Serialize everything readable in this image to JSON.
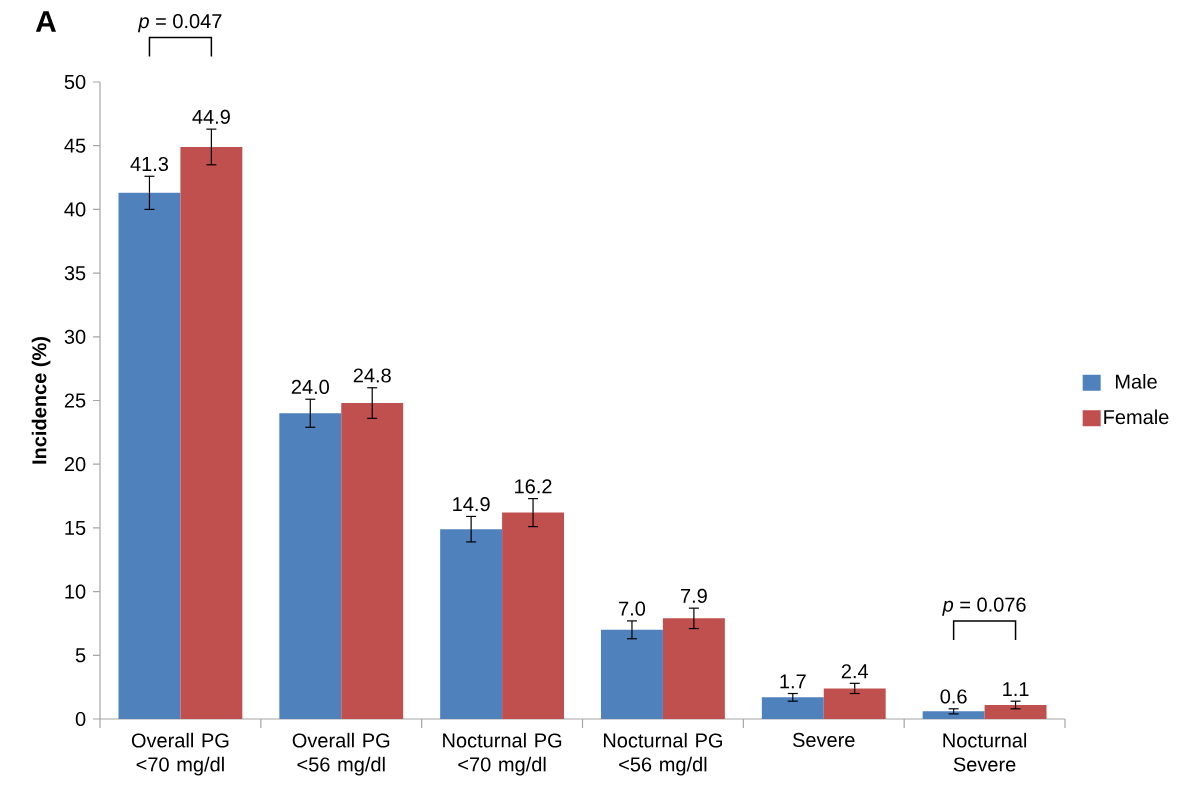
{
  "chart_data": {
    "type": "bar",
    "title": "A",
    "ylabel": "Incidence (%)",
    "categories": [
      "Overall PG <70 mg/dl",
      "Overall PG <56 mg/dl",
      "Nocturnal PG <70 mg/dl",
      "Nocturnal PG <56 mg/dl",
      "Severe",
      "Nocturnal Severe"
    ],
    "series": [
      {
        "name": "Male",
        "color": "#4f81bd",
        "values": [
          41.3,
          24.0,
          14.9,
          7.0,
          1.7,
          0.6
        ],
        "errors": [
          1.3,
          1.1,
          1.0,
          0.7,
          0.3,
          0.2
        ],
        "value_labels": [
          "41.3",
          "24.0",
          "14.9",
          "7.0",
          "1.7",
          "0.6"
        ]
      },
      {
        "name": "Female",
        "color": "#c0504d",
        "values": [
          44.9,
          24.8,
          16.2,
          7.9,
          2.4,
          1.1
        ],
        "errors": [
          1.4,
          1.2,
          1.1,
          0.8,
          0.4,
          0.3
        ],
        "value_labels": [
          "44.9",
          "24.8",
          "16.2",
          "7.9",
          "2.4",
          "1.1"
        ]
      }
    ],
    "ylim": [
      0,
      50
    ],
    "yticks": [
      0,
      5,
      10,
      15,
      20,
      25,
      30,
      35,
      40,
      45,
      50
    ],
    "legend": "right",
    "grid": false,
    "annotations": [
      "*p* = 0.047",
      "*p* = 0.076"
    ]
  }
}
